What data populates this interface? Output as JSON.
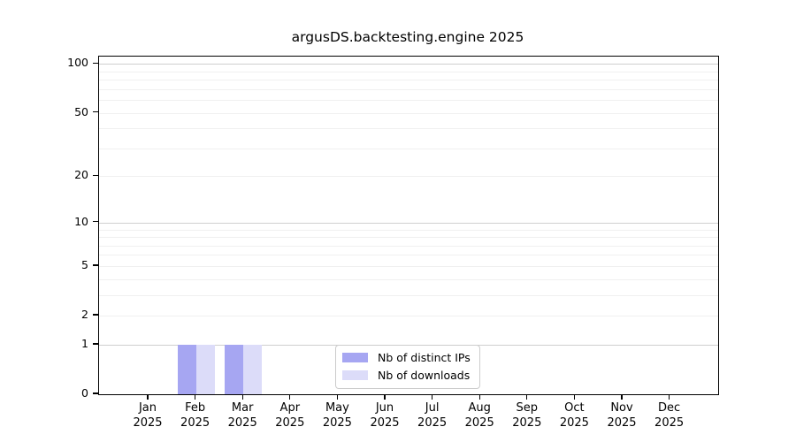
{
  "figure": {
    "background": "#ffffff"
  },
  "chart_data": {
    "type": "bar",
    "title": "argusDS.backtesting.engine 2025",
    "xlabel": "",
    "ylabel": "",
    "x": {
      "months": [
        "Jan",
        "Feb",
        "Mar",
        "Apr",
        "May",
        "Jun",
        "Jul",
        "Aug",
        "Sep",
        "Oct",
        "Nov",
        "Dec"
      ],
      "year": "2025"
    },
    "series": [
      {
        "name": "Nb of distinct IPs",
        "color": "#a6a6f2",
        "values": [
          0,
          1,
          1,
          0,
          0,
          0,
          0,
          0,
          0,
          0,
          0,
          0
        ]
      },
      {
        "name": "Nb of downloads",
        "color": "#dcdcf9",
        "values": [
          0,
          1,
          1,
          0,
          0,
          0,
          0,
          0,
          0,
          0,
          0,
          0
        ]
      }
    ],
    "yscale": "log1p",
    "ylim": [
      0,
      110
    ],
    "yticks": {
      "values": [
        0,
        1,
        2,
        5,
        10,
        20,
        50,
        100
      ],
      "labels": [
        "0",
        "1",
        "2",
        "5",
        "10",
        "20",
        "50",
        "100"
      ]
    },
    "grid": {
      "major_values": [
        1,
        10,
        100
      ],
      "minor_values": [
        2,
        3,
        4,
        5,
        6,
        7,
        8,
        9,
        20,
        30,
        40,
        50,
        60,
        70,
        80,
        90
      ],
      "major_color": "#cfcfcf",
      "minor_color": "#f0f0f0"
    },
    "legend": {
      "position": "lower center"
    }
  }
}
